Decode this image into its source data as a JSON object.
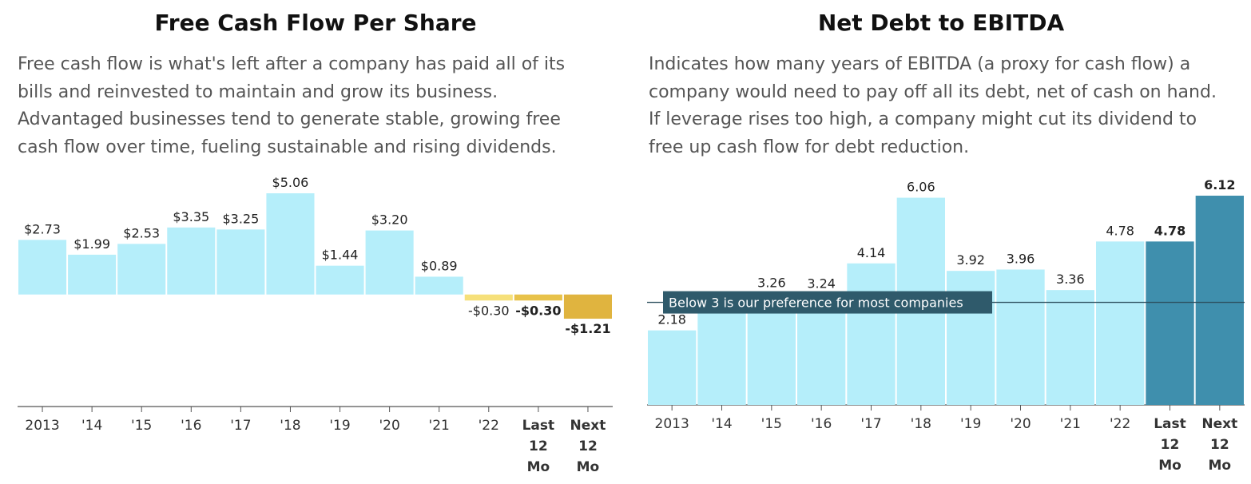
{
  "colors": {
    "positive": "#b5eefa",
    "negative_light": "#f6e07a",
    "negative_mid": "#e8c24a",
    "negative_dark": "#e0b43f",
    "highlight": "#3f8fad",
    "axis": "#555555",
    "reference_line": "#2c4f5e",
    "reference_label_bg": "#2f5a6b",
    "reference_label_text": "#ffffff"
  },
  "panels": {
    "fcf": {
      "title": "Free Cash Flow Per Share",
      "description": "Free cash flow is what's left after a company has paid all of its\nbills and reinvested to maintain and grow its business.\nAdvantaged businesses tend to generate stable, growing free\ncash flow over time, fueling sustainable and rising dividends."
    },
    "debt": {
      "title": "Net Debt to EBITDA",
      "description": "Indicates how many years of EBITDA (a proxy for cash flow) a\ncompany would need to pay off all its debt, net of cash on hand.\nIf leverage rises too high, a company might cut its dividend to\nfree up cash flow for debt reduction."
    }
  },
  "chart_data": [
    {
      "type": "bar",
      "title": "Free Cash Flow Per Share",
      "categories": [
        "2013",
        "'14",
        "'15",
        "'16",
        "'17",
        "'18",
        "'19",
        "'20",
        "'21",
        "'22",
        "Last 12 Mo",
        "Next 12 Mo"
      ],
      "values": [
        2.73,
        1.99,
        2.53,
        3.35,
        3.25,
        5.06,
        1.44,
        3.2,
        0.89,
        -0.3,
        -0.3,
        -1.21
      ],
      "value_labels": [
        "$2.73",
        "$1.99",
        "$2.53",
        "$3.35",
        "$3.25",
        "$5.06",
        "$1.44",
        "$3.20",
        "$0.89",
        "-$0.30",
        "-$0.30",
        "-$1.21"
      ],
      "bold_categories": [
        "Last 12 Mo",
        "Next 12 Mo"
      ],
      "ylim": [
        -5.6,
        5.06
      ],
      "grid": false
    },
    {
      "type": "bar",
      "title": "Net Debt to EBITDA",
      "categories": [
        "2013",
        "'14",
        "'15",
        "'16",
        "'17",
        "'18",
        "'19",
        "'20",
        "'21",
        "'22",
        "Last 12 Mo",
        "Next 12 Mo"
      ],
      "values": [
        2.18,
        3.26,
        3.26,
        3.24,
        4.14,
        6.06,
        3.92,
        3.96,
        3.36,
        4.78,
        4.78,
        6.12
      ],
      "value_labels": [
        "2.18",
        "",
        "3.26",
        "3.24",
        "4.14",
        "6.06",
        "3.92",
        "3.96",
        "3.36",
        "4.78",
        "4.78",
        "6.12"
      ],
      "bold_categories": [
        "Last 12 Mo",
        "Next 12 Mo"
      ],
      "ylim": [
        0,
        6.12
      ],
      "reference_line": {
        "value": 3,
        "label": "Below 3 is our preference for most companies"
      },
      "grid": false
    }
  ]
}
